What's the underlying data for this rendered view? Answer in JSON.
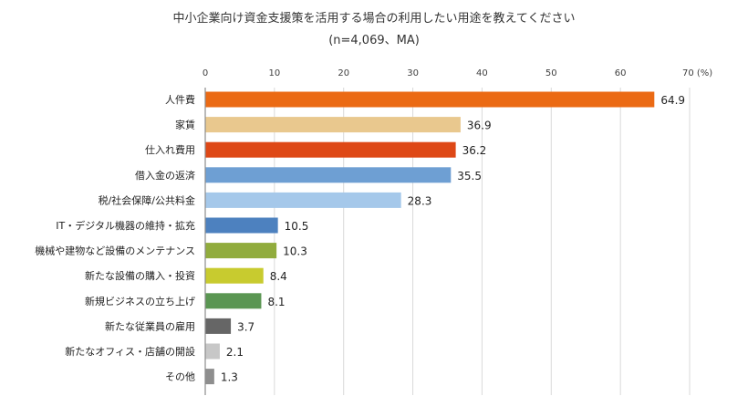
{
  "chart_data": {
    "type": "bar",
    "orientation": "horizontal",
    "title": "中小企業向け資金支援策を活用する場合の利用したい用途を教えてください",
    "subtitle": "(n=4,069、MA)",
    "xlim": [
      0,
      70
    ],
    "x_ticks": [
      {
        "value": 0,
        "label": "0"
      },
      {
        "value": 10,
        "label": "10"
      },
      {
        "value": 20,
        "label": "20"
      },
      {
        "value": 30,
        "label": "30"
      },
      {
        "value": 40,
        "label": "40"
      },
      {
        "value": 50,
        "label": "50"
      },
      {
        "value": 60,
        "label": "60"
      },
      {
        "value": 70,
        "label": "70 (%)"
      }
    ],
    "grid": true,
    "legend": "none",
    "categories": [
      "人件費",
      "家賃",
      "仕入れ費用",
      "借入金の返済",
      "税/社会保障/公共料金",
      "IT・デジタル機器の維持・拡充",
      "機械や建物など設備のメンテナンス",
      "新たな設備の購入・投資",
      "新規ビジネスの立ち上げ",
      "新たな従業員の雇用",
      "新たなオフィス・店舗の開設",
      "その他"
    ],
    "values": [
      64.9,
      36.9,
      36.2,
      35.5,
      28.3,
      10.5,
      10.3,
      8.4,
      8.1,
      3.7,
      2.1,
      1.3
    ],
    "value_labels": [
      "64.9",
      "36.9",
      "36.2",
      "35.5",
      "28.3",
      "10.5",
      "10.3",
      "8.4",
      "8.1",
      "3.7",
      "2.1",
      "1.3"
    ],
    "colors": [
      "#EB6A14",
      "#E9C88E",
      "#DE4816",
      "#6E9FD3",
      "#A5C8EA",
      "#4D81BF",
      "#91AC3D",
      "#C8CB2F",
      "#5A9652",
      "#666666",
      "#C7C7C7",
      "#8E8E8E"
    ]
  }
}
